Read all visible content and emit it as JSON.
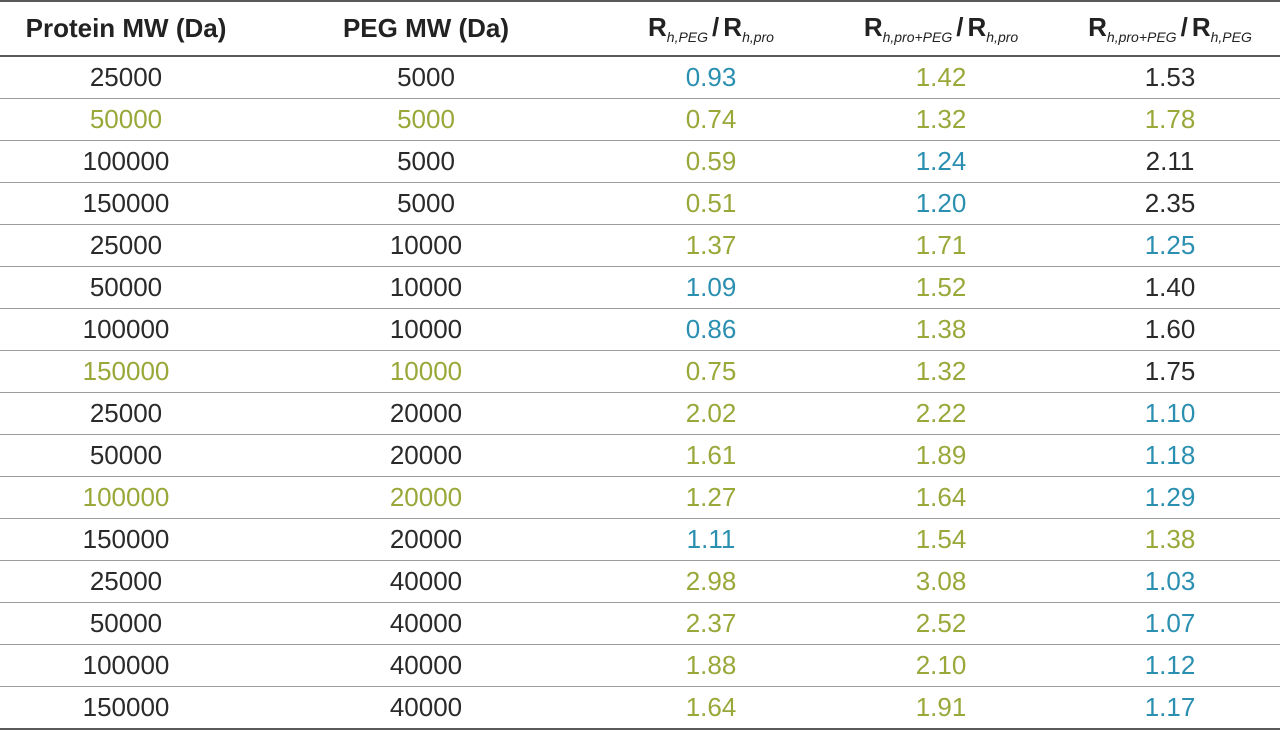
{
  "colors": {
    "dark": "#2a2a2a",
    "green": "#9aa83a",
    "blue": "#2a8fb0"
  },
  "headers": {
    "protein_mw": "Protein MW (Da)",
    "peg_mw": "PEG MW (Da)",
    "ratio1": {
      "num": "R",
      "num_sub": "h,PEG",
      "sep": "/",
      "den": "R",
      "den_sub": "h,pro"
    },
    "ratio2": {
      "num": "R",
      "num_sub": "h,pro+PEG",
      "sep": "/",
      "den": "R",
      "den_sub": "h,pro"
    },
    "ratio3": {
      "num": "R",
      "num_sub": "h,pro+PEG",
      "sep": "/",
      "den": "R",
      "den_sub": "h,PEG"
    }
  },
  "rows": [
    {
      "protein": "25000",
      "peg": "5000",
      "r1": "0.93",
      "r2": "1.42",
      "r3": "1.53",
      "c": [
        "dark",
        "dark",
        "blue",
        "green",
        "dark"
      ]
    },
    {
      "protein": "50000",
      "peg": "5000",
      "r1": "0.74",
      "r2": "1.32",
      "r3": "1.78",
      "c": [
        "green",
        "green",
        "green",
        "green",
        "green"
      ]
    },
    {
      "protein": "100000",
      "peg": "5000",
      "r1": "0.59",
      "r2": "1.24",
      "r3": "2.11",
      "c": [
        "dark",
        "dark",
        "green",
        "blue",
        "dark"
      ]
    },
    {
      "protein": "150000",
      "peg": "5000",
      "r1": "0.51",
      "r2": "1.20",
      "r3": "2.35",
      "c": [
        "dark",
        "dark",
        "green",
        "blue",
        "dark"
      ]
    },
    {
      "protein": "25000",
      "peg": "10000",
      "r1": "1.37",
      "r2": "1.71",
      "r3": "1.25",
      "c": [
        "dark",
        "dark",
        "green",
        "green",
        "blue"
      ]
    },
    {
      "protein": "50000",
      "peg": "10000",
      "r1": "1.09",
      "r2": "1.52",
      "r3": "1.40",
      "c": [
        "dark",
        "dark",
        "blue",
        "green",
        "dark"
      ]
    },
    {
      "protein": "100000",
      "peg": "10000",
      "r1": "0.86",
      "r2": "1.38",
      "r3": "1.60",
      "c": [
        "dark",
        "dark",
        "blue",
        "green",
        "dark"
      ]
    },
    {
      "protein": "150000",
      "peg": "10000",
      "r1": "0.75",
      "r2": "1.32",
      "r3": "1.75",
      "c": [
        "green",
        "green",
        "green",
        "green",
        "dark"
      ]
    },
    {
      "protein": "25000",
      "peg": "20000",
      "r1": "2.02",
      "r2": "2.22",
      "r3": "1.10",
      "c": [
        "dark",
        "dark",
        "green",
        "green",
        "blue"
      ]
    },
    {
      "protein": "50000",
      "peg": "20000",
      "r1": "1.61",
      "r2": "1.89",
      "r3": "1.18",
      "c": [
        "dark",
        "dark",
        "green",
        "green",
        "blue"
      ]
    },
    {
      "protein": "100000",
      "peg": "20000",
      "r1": "1.27",
      "r2": "1.64",
      "r3": "1.29",
      "c": [
        "green",
        "green",
        "green",
        "green",
        "blue"
      ]
    },
    {
      "protein": "150000",
      "peg": "20000",
      "r1": "1.11",
      "r2": "1.54",
      "r3": "1.38",
      "c": [
        "dark",
        "dark",
        "blue",
        "green",
        "green"
      ]
    },
    {
      "protein": "25000",
      "peg": "40000",
      "r1": "2.98",
      "r2": "3.08",
      "r3": "1.03",
      "c": [
        "dark",
        "dark",
        "green",
        "green",
        "blue"
      ]
    },
    {
      "protein": "50000",
      "peg": "40000",
      "r1": "2.37",
      "r2": "2.52",
      "r3": "1.07",
      "c": [
        "dark",
        "dark",
        "green",
        "green",
        "blue"
      ]
    },
    {
      "protein": "100000",
      "peg": "40000",
      "r1": "1.88",
      "r2": "2.10",
      "r3": "1.12",
      "c": [
        "dark",
        "dark",
        "green",
        "green",
        "blue"
      ]
    },
    {
      "protein": "150000",
      "peg": "40000",
      "r1": "1.64",
      "r2": "1.91",
      "r3": "1.17",
      "c": [
        "dark",
        "dark",
        "green",
        "green",
        "blue"
      ]
    }
  ]
}
